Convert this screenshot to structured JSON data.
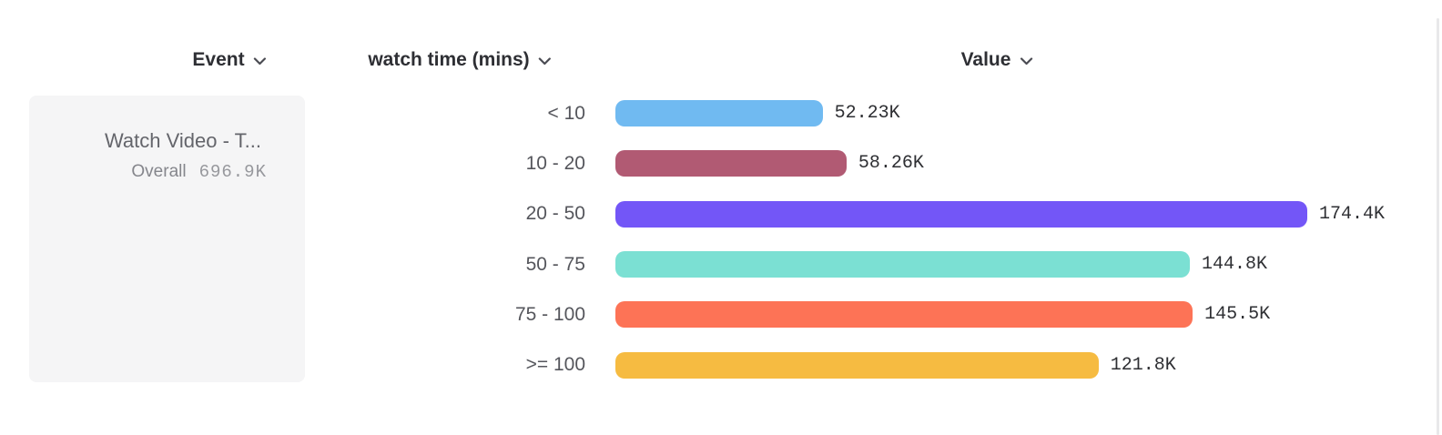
{
  "columns": {
    "event": {
      "label": "Event"
    },
    "breakdown": {
      "label": "watch time (mins)"
    },
    "value": {
      "label": "Value"
    }
  },
  "event_card": {
    "title": "Watch Video - T...",
    "overall_label": "Overall",
    "overall_value": "696.9K"
  },
  "chart_data": {
    "type": "bar",
    "orientation": "horizontal",
    "title": "",
    "xlabel": "Value",
    "ylabel": "watch time (mins)",
    "series_name": "Watch Video - T...",
    "categories": [
      "< 10",
      "10 - 20",
      "20 - 50",
      "50 - 75",
      "75 - 100",
      ">= 100"
    ],
    "values": [
      52230,
      58260,
      174400,
      144800,
      145500,
      121800
    ],
    "value_labels": [
      "52.23K",
      "58.26K",
      "174.4K",
      "144.8K",
      "145.5K",
      "121.8K"
    ],
    "bar_colors": [
      "#70BAF1",
      "#B15A73",
      "#7356F7",
      "#7BE0D3",
      "#FD7356",
      "#F6BB41"
    ],
    "overall_total": "696.9K",
    "xlim": [
      0,
      174400
    ],
    "grid": false,
    "legend": "none"
  },
  "colors": {
    "card_bg": "#f5f5f6",
    "header_text": "#2e2f34",
    "category_text": "#55565c",
    "value_text": "#2e2f33",
    "chevron": "#4a4b52"
  }
}
